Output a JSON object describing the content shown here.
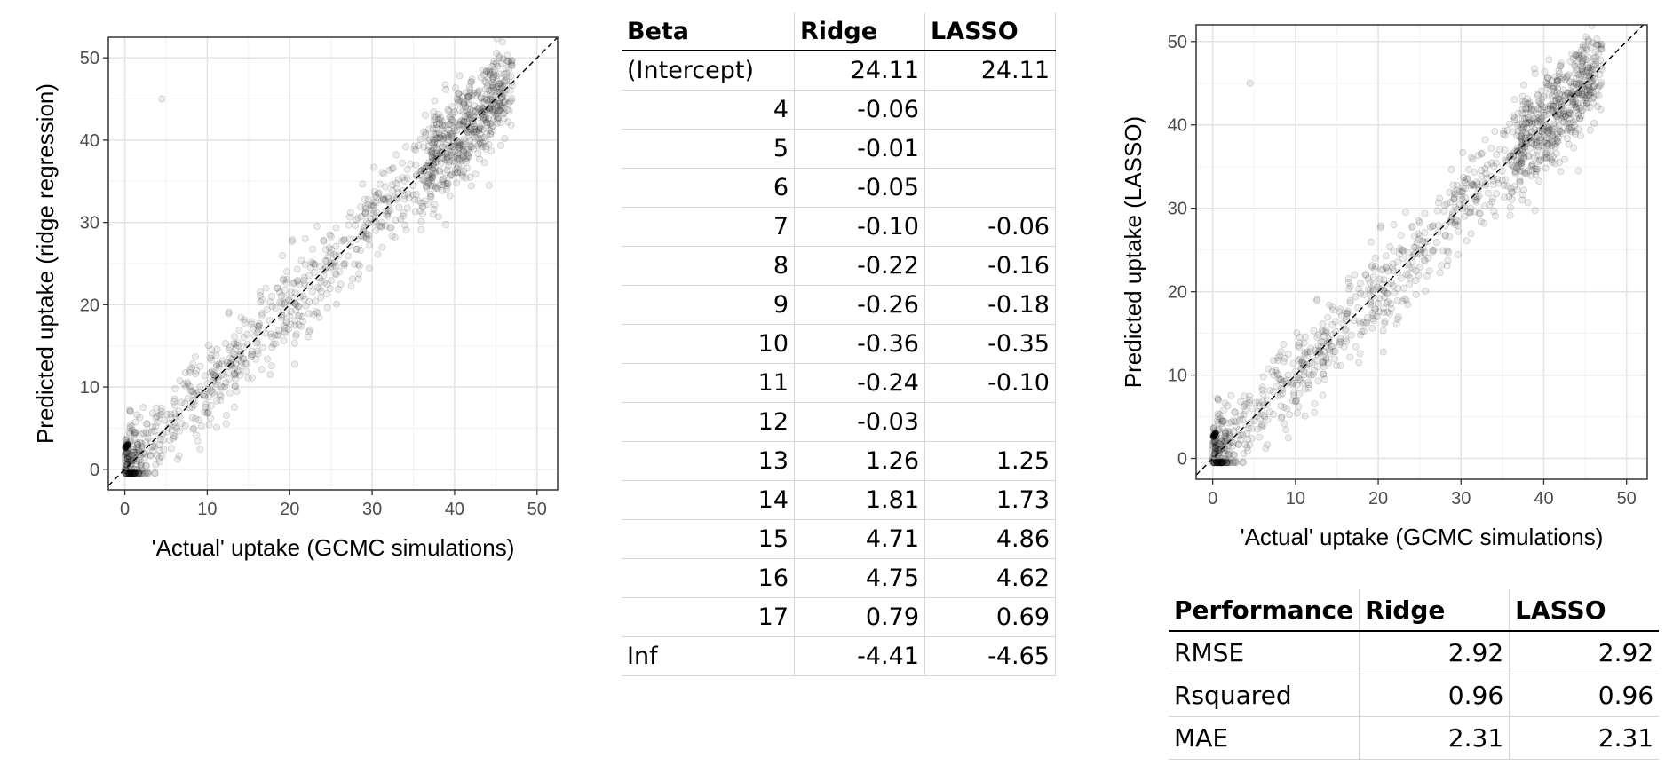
{
  "chart_data": [
    {
      "type": "scatter",
      "xlabel": "'Actual' uptake (GCMC simulations)",
      "ylabel": "Predicted uptake (ridge regression)",
      "xlim": [
        -2,
        52.5
      ],
      "ylim": [
        -2.5,
        52.5
      ],
      "xticks": [
        0,
        10,
        20,
        30,
        40,
        50
      ],
      "yticks": [
        0,
        10,
        20,
        30,
        40,
        50
      ],
      "grid": true,
      "reference_line": "y = x (dashed)",
      "point_count_approx": 1300,
      "point_relation": "predicted ≈ actual with residual spread ~3, clustered near (0,3) and 40-47",
      "outliers": [
        [
          4.5,
          45
        ]
      ]
    },
    {
      "type": "scatter",
      "xlabel": "'Actual' uptake (GCMC simulations)",
      "ylabel": "Predicted uptake (LASSO)",
      "xlim": [
        -2,
        52.5
      ],
      "ylim": [
        -2.5,
        52
      ],
      "xticks": [
        0,
        10,
        20,
        30,
        40,
        50
      ],
      "yticks": [
        0,
        10,
        20,
        30,
        40,
        50
      ],
      "grid": true,
      "reference_line": "y = x (dashed)",
      "point_count_approx": 1300,
      "point_relation": "predicted ≈ actual with residual spread ~3, clustered near (0,3) and 40-47",
      "outliers": [
        [
          4.5,
          45
        ]
      ]
    },
    {
      "type": "table",
      "headers": [
        "Beta",
        "Ridge",
        "LASSO"
      ],
      "rows": [
        [
          "(Intercept)",
          "24.11",
          "24.11"
        ],
        [
          "4",
          "-0.06",
          ""
        ],
        [
          "5",
          "-0.01",
          ""
        ],
        [
          "6",
          "-0.05",
          ""
        ],
        [
          "7",
          "-0.10",
          "-0.06"
        ],
        [
          "8",
          "-0.22",
          "-0.16"
        ],
        [
          "9",
          "-0.26",
          "-0.18"
        ],
        [
          "10",
          "-0.36",
          "-0.35"
        ],
        [
          "11",
          "-0.24",
          "-0.10"
        ],
        [
          "12",
          "-0.03",
          ""
        ],
        [
          "13",
          "1.26",
          "1.25"
        ],
        [
          "14",
          "1.81",
          "1.73"
        ],
        [
          "15",
          "4.71",
          "4.86"
        ],
        [
          "16",
          "4.75",
          "4.62"
        ],
        [
          "17",
          "0.79",
          "0.69"
        ],
        [
          "Inf",
          "-4.41",
          "-4.65"
        ]
      ]
    },
    {
      "type": "table",
      "headers": [
        "Performance",
        "Ridge",
        "LASSO"
      ],
      "rows": [
        [
          "RMSE",
          "2.92",
          "2.92"
        ],
        [
          "Rsquared",
          "0.96",
          "0.96"
        ],
        [
          "MAE",
          "2.31",
          "2.31"
        ]
      ]
    }
  ]
}
